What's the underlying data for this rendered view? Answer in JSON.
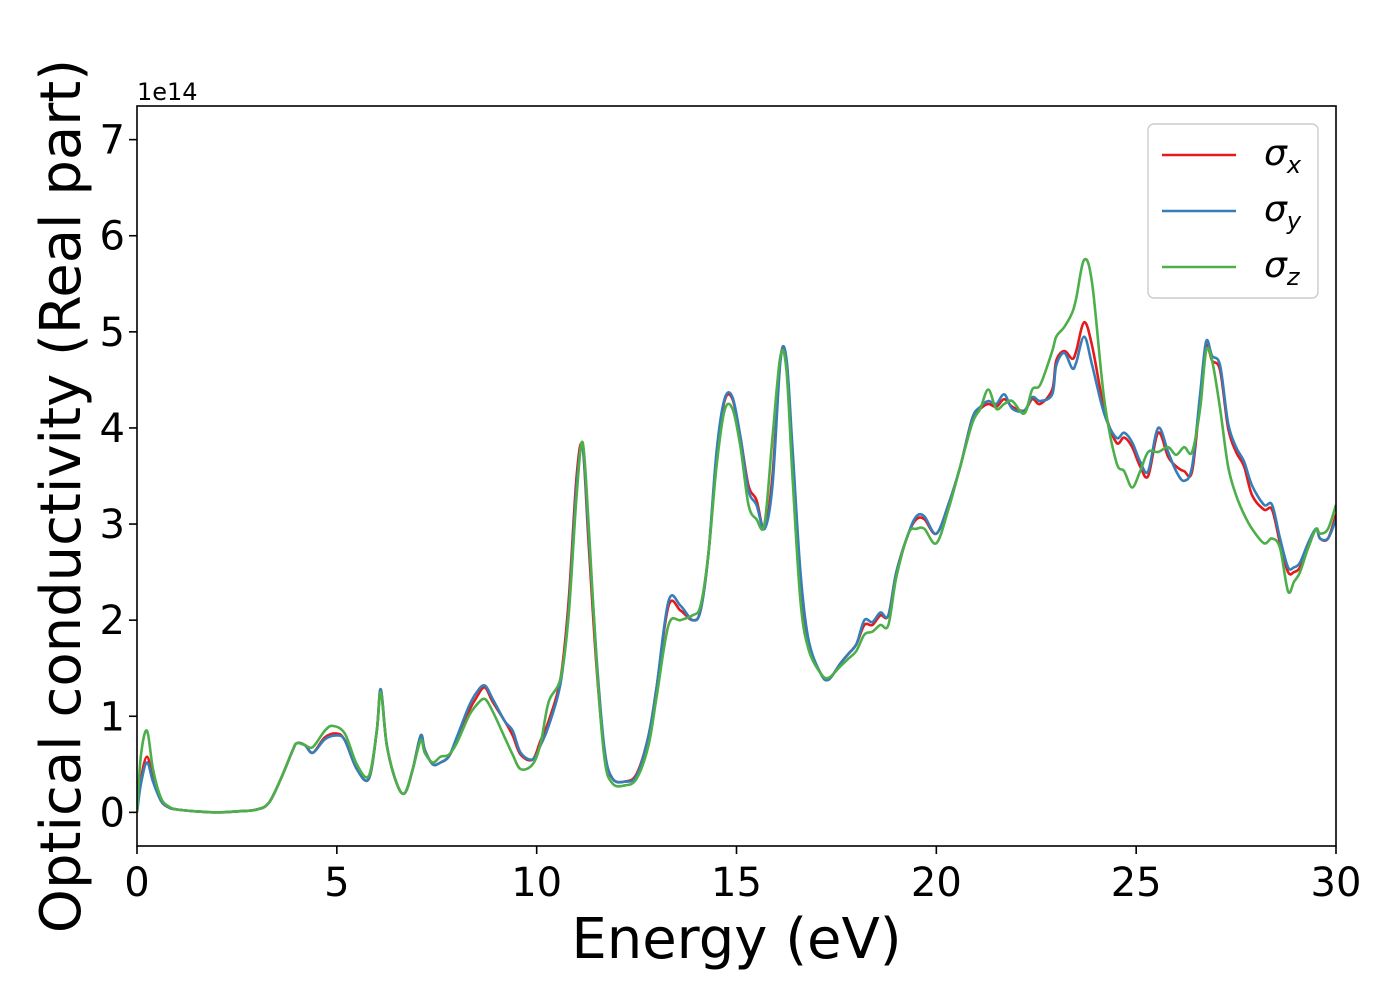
{
  "chart_data": {
    "type": "line",
    "title": "",
    "xlabel": "Energy (eV)",
    "ylabel": "Optical conductivity (Real part)",
    "y_offset_text": "1e14",
    "y_multiplier": 100000000000000.0,
    "xlim": [
      0,
      30
    ],
    "ylim": [
      -0.35,
      7.35
    ],
    "xticks": [
      0,
      5,
      10,
      15,
      20,
      25,
      30
    ],
    "xtick_labels": [
      "0",
      "5",
      "10",
      "15",
      "20",
      "25",
      "30"
    ],
    "yticks": [
      0,
      1,
      2,
      3,
      4,
      5,
      6,
      7
    ],
    "ytick_labels": [
      "0",
      "1",
      "2",
      "3",
      "4",
      "5",
      "6",
      "7"
    ],
    "grid": false,
    "legend_position": "top-right",
    "series": [
      {
        "name": "σx",
        "label_symbol": "σ",
        "label_sub": "x",
        "color": "#e41a1c",
        "x": [
          0,
          0.1,
          0.25,
          0.4,
          0.6,
          0.8,
          1.0,
          1.5,
          2.0,
          2.5,
          3.0,
          3.3,
          3.6,
          3.9,
          4.0,
          4.2,
          4.4,
          4.7,
          5.0,
          5.2,
          5.5,
          5.8,
          6.0,
          6.1,
          6.25,
          6.5,
          6.7,
          6.9,
          7.1,
          7.2,
          7.4,
          7.6,
          7.8,
          8.0,
          8.3,
          8.5,
          8.7,
          8.9,
          9.2,
          9.4,
          9.6,
          9.9,
          10.1,
          10.3,
          10.6,
          10.8,
          11.0,
          11.15,
          11.3,
          11.5,
          11.7,
          11.9,
          12.2,
          12.5,
          12.8,
          13.0,
          13.3,
          13.6,
          13.9,
          14.1,
          14.3,
          14.5,
          14.7,
          14.9,
          15.1,
          15.3,
          15.5,
          15.7,
          15.9,
          16.1,
          16.25,
          16.4,
          16.6,
          16.8,
          17.1,
          17.3,
          17.6,
          17.8,
          18.0,
          18.2,
          18.4,
          18.6,
          18.8,
          19.0,
          19.3,
          19.5,
          19.7,
          20.0,
          20.3,
          20.6,
          20.9,
          21.1,
          21.3,
          21.5,
          21.7,
          21.9,
          22.2,
          22.4,
          22.6,
          22.9,
          23.0,
          23.2,
          23.4,
          23.5,
          23.7,
          23.9,
          24.2,
          24.5,
          24.7,
          24.9,
          25.1,
          25.3,
          25.55,
          25.8,
          26.0,
          26.2,
          26.4,
          26.6,
          26.75,
          26.9,
          27.1,
          27.3,
          27.5,
          27.7,
          27.9,
          28.2,
          28.4,
          28.6,
          28.8,
          28.95,
          29.1,
          29.3,
          29.5,
          29.6,
          29.8,
          30.0
        ],
        "y": [
          0.0,
          0.35,
          0.58,
          0.35,
          0.12,
          0.05,
          0.03,
          0.01,
          0.0,
          0.01,
          0.03,
          0.1,
          0.35,
          0.65,
          0.72,
          0.7,
          0.62,
          0.78,
          0.82,
          0.75,
          0.45,
          0.35,
          0.85,
          1.28,
          0.7,
          0.3,
          0.2,
          0.45,
          0.8,
          0.65,
          0.5,
          0.52,
          0.58,
          0.75,
          1.05,
          1.2,
          1.3,
          1.15,
          0.95,
          0.8,
          0.6,
          0.55,
          0.75,
          0.95,
          1.4,
          2.2,
          3.5,
          3.8,
          2.8,
          1.5,
          0.6,
          0.35,
          0.32,
          0.4,
          0.8,
          1.3,
          2.15,
          2.1,
          2.0,
          2.1,
          2.7,
          3.7,
          4.28,
          4.3,
          3.9,
          3.4,
          3.25,
          2.95,
          3.5,
          4.72,
          4.7,
          3.7,
          2.4,
          1.75,
          1.45,
          1.38,
          1.55,
          1.65,
          1.75,
          1.95,
          1.95,
          2.05,
          2.05,
          2.5,
          2.9,
          3.05,
          3.05,
          2.9,
          3.2,
          3.6,
          4.1,
          4.2,
          4.25,
          4.22,
          4.3,
          4.22,
          4.18,
          4.3,
          4.25,
          4.4,
          4.7,
          4.8,
          4.72,
          4.8,
          5.1,
          4.85,
          4.2,
          3.85,
          3.9,
          3.8,
          3.6,
          3.5,
          3.95,
          3.7,
          3.6,
          3.55,
          3.55,
          4.3,
          4.85,
          4.7,
          4.6,
          4.0,
          3.75,
          3.6,
          3.3,
          3.15,
          3.15,
          2.8,
          2.5,
          2.5,
          2.55,
          2.75,
          2.95,
          2.85,
          2.85,
          3.1
        ]
      },
      {
        "name": "σy",
        "label_symbol": "σ",
        "label_sub": "y",
        "color": "#377eb8",
        "x": [
          0,
          0.1,
          0.25,
          0.4,
          0.6,
          0.8,
          1.0,
          1.5,
          2.0,
          2.5,
          3.0,
          3.3,
          3.6,
          3.9,
          4.0,
          4.2,
          4.4,
          4.7,
          5.0,
          5.2,
          5.5,
          5.8,
          6.0,
          6.1,
          6.25,
          6.5,
          6.7,
          6.9,
          7.1,
          7.2,
          7.4,
          7.6,
          7.8,
          8.0,
          8.3,
          8.5,
          8.7,
          8.9,
          9.2,
          9.4,
          9.6,
          9.9,
          10.1,
          10.3,
          10.6,
          10.8,
          11.0,
          11.15,
          11.3,
          11.5,
          11.7,
          11.9,
          12.2,
          12.5,
          12.8,
          13.0,
          13.3,
          13.6,
          13.9,
          14.1,
          14.3,
          14.5,
          14.7,
          14.9,
          15.1,
          15.3,
          15.5,
          15.7,
          15.9,
          16.1,
          16.25,
          16.4,
          16.6,
          16.8,
          17.1,
          17.3,
          17.6,
          17.8,
          18.0,
          18.2,
          18.4,
          18.6,
          18.8,
          19.0,
          19.3,
          19.5,
          19.7,
          20.0,
          20.3,
          20.6,
          20.9,
          21.1,
          21.3,
          21.5,
          21.7,
          21.9,
          22.2,
          22.4,
          22.6,
          22.9,
          23.0,
          23.2,
          23.4,
          23.5,
          23.7,
          23.9,
          24.2,
          24.5,
          24.7,
          24.9,
          25.1,
          25.3,
          25.55,
          25.8,
          26.0,
          26.2,
          26.4,
          26.6,
          26.75,
          26.9,
          27.1,
          27.3,
          27.5,
          27.7,
          27.9,
          28.2,
          28.4,
          28.6,
          28.8,
          28.95,
          29.1,
          29.3,
          29.5,
          29.6,
          29.8,
          30.0
        ],
        "y": [
          0.0,
          0.3,
          0.52,
          0.32,
          0.12,
          0.05,
          0.03,
          0.01,
          0.0,
          0.01,
          0.03,
          0.1,
          0.35,
          0.65,
          0.72,
          0.7,
          0.62,
          0.76,
          0.8,
          0.75,
          0.45,
          0.35,
          0.85,
          1.28,
          0.7,
          0.3,
          0.2,
          0.45,
          0.8,
          0.65,
          0.5,
          0.52,
          0.58,
          0.78,
          1.1,
          1.25,
          1.32,
          1.18,
          0.95,
          0.85,
          0.62,
          0.55,
          0.7,
          0.9,
          1.35,
          2.1,
          3.4,
          3.8,
          2.9,
          1.6,
          0.65,
          0.35,
          0.32,
          0.38,
          0.8,
          1.3,
          2.2,
          2.15,
          2.0,
          2.1,
          2.7,
          3.75,
          4.3,
          4.32,
          3.9,
          3.35,
          3.2,
          2.95,
          3.4,
          4.7,
          4.72,
          3.8,
          2.5,
          1.8,
          1.45,
          1.38,
          1.55,
          1.65,
          1.75,
          2.0,
          1.98,
          2.08,
          2.05,
          2.5,
          2.9,
          3.08,
          3.08,
          2.9,
          3.2,
          3.6,
          4.1,
          4.22,
          4.28,
          4.25,
          4.35,
          4.2,
          4.18,
          4.32,
          4.28,
          4.35,
          4.65,
          4.78,
          4.62,
          4.68,
          4.95,
          4.65,
          4.15,
          3.9,
          3.95,
          3.85,
          3.65,
          3.55,
          4.0,
          3.75,
          3.55,
          3.45,
          3.6,
          4.35,
          4.9,
          4.75,
          4.65,
          4.05,
          3.8,
          3.65,
          3.4,
          3.2,
          3.2,
          2.85,
          2.55,
          2.55,
          2.6,
          2.8,
          2.95,
          2.85,
          2.85,
          3.05
        ]
      },
      {
        "name": "σz",
        "label_symbol": "σ",
        "label_sub": "z",
        "color": "#4daf4a",
        "x": [
          0,
          0.1,
          0.25,
          0.4,
          0.6,
          0.8,
          1.0,
          1.5,
          2.0,
          2.5,
          3.0,
          3.3,
          3.6,
          3.9,
          4.0,
          4.2,
          4.4,
          4.7,
          4.9,
          5.2,
          5.5,
          5.8,
          6.0,
          6.1,
          6.25,
          6.5,
          6.7,
          6.9,
          7.1,
          7.2,
          7.4,
          7.6,
          7.8,
          8.0,
          8.3,
          8.5,
          8.7,
          8.9,
          9.2,
          9.4,
          9.6,
          9.9,
          10.1,
          10.3,
          10.6,
          10.8,
          11.0,
          11.15,
          11.3,
          11.5,
          11.7,
          11.9,
          12.2,
          12.5,
          12.8,
          13.0,
          13.3,
          13.6,
          13.9,
          14.1,
          14.3,
          14.5,
          14.7,
          14.9,
          15.1,
          15.3,
          15.5,
          15.7,
          15.9,
          16.1,
          16.25,
          16.4,
          16.6,
          16.8,
          17.1,
          17.3,
          17.6,
          17.8,
          18.0,
          18.2,
          18.4,
          18.6,
          18.8,
          19.0,
          19.3,
          19.5,
          19.7,
          20.0,
          20.3,
          20.6,
          20.9,
          21.1,
          21.3,
          21.5,
          21.7,
          21.9,
          22.2,
          22.4,
          22.6,
          22.9,
          23.0,
          23.2,
          23.4,
          23.5,
          23.7,
          23.9,
          24.2,
          24.5,
          24.7,
          24.9,
          25.1,
          25.3,
          25.55,
          25.8,
          26.0,
          26.2,
          26.4,
          26.6,
          26.75,
          26.9,
          27.1,
          27.3,
          27.5,
          27.7,
          27.9,
          28.2,
          28.4,
          28.6,
          28.8,
          28.95,
          29.1,
          29.3,
          29.5,
          29.6,
          29.8,
          30.0
        ],
        "y": [
          0.0,
          0.6,
          0.85,
          0.45,
          0.15,
          0.06,
          0.03,
          0.01,
          0.0,
          0.01,
          0.03,
          0.1,
          0.35,
          0.65,
          0.72,
          0.7,
          0.68,
          0.85,
          0.9,
          0.82,
          0.5,
          0.38,
          0.85,
          1.25,
          0.7,
          0.3,
          0.2,
          0.45,
          0.75,
          0.62,
          0.52,
          0.58,
          0.6,
          0.72,
          1.0,
          1.12,
          1.18,
          1.05,
          0.78,
          0.6,
          0.45,
          0.5,
          0.72,
          1.15,
          1.4,
          2.05,
          3.3,
          3.85,
          3.0,
          1.55,
          0.55,
          0.3,
          0.28,
          0.35,
          0.7,
          1.2,
          1.95,
          2.0,
          2.05,
          2.15,
          2.7,
          3.6,
          4.18,
          4.2,
          3.8,
          3.2,
          3.05,
          3.0,
          3.9,
          4.75,
          4.6,
          3.5,
          2.2,
          1.7,
          1.45,
          1.4,
          1.52,
          1.6,
          1.68,
          1.85,
          1.88,
          1.95,
          1.95,
          2.45,
          2.9,
          2.95,
          2.95,
          2.8,
          3.15,
          3.6,
          4.05,
          4.2,
          4.4,
          4.2,
          4.25,
          4.28,
          4.15,
          4.4,
          4.45,
          4.8,
          4.95,
          5.05,
          5.2,
          5.35,
          5.75,
          5.5,
          4.3,
          3.65,
          3.55,
          3.38,
          3.55,
          3.75,
          3.75,
          3.8,
          3.72,
          3.8,
          3.75,
          4.2,
          4.8,
          4.7,
          4.2,
          3.6,
          3.3,
          3.1,
          2.95,
          2.8,
          2.85,
          2.75,
          2.3,
          2.4,
          2.5,
          2.75,
          2.95,
          2.9,
          2.95,
          3.2
        ]
      }
    ]
  }
}
